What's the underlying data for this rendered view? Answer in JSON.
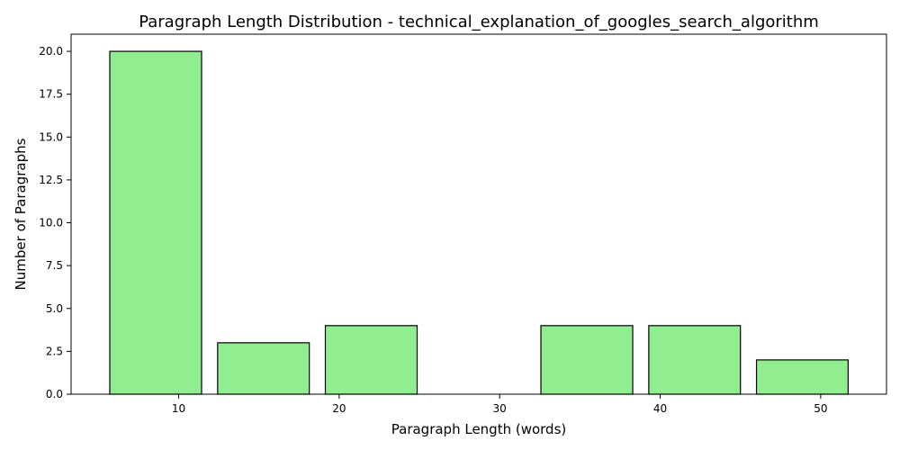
{
  "chart_data": {
    "type": "bar",
    "title": "Paragraph Length Distribution - technical_explanation_of_googles_search_algorithm",
    "xlabel": "Paragraph Length (words)",
    "ylabel": "Number of Paragraphs",
    "bins": [
      {
        "start": 5.71,
        "end": 11.43,
        "value": 20
      },
      {
        "start": 12.43,
        "end": 18.14,
        "value": 3
      },
      {
        "start": 19.14,
        "end": 24.86,
        "value": 4
      },
      {
        "start": 25.86,
        "end": 31.57,
        "value": 0
      },
      {
        "start": 32.57,
        "end": 38.29,
        "value": 4
      },
      {
        "start": 39.29,
        "end": 45.0,
        "value": 4
      },
      {
        "start": 46.0,
        "end": 51.71,
        "value": 2
      }
    ],
    "xlim": [
      3.3,
      54.1
    ],
    "ylim": [
      0,
      21
    ],
    "xticks": [
      10,
      20,
      30,
      40,
      50
    ],
    "yticks": [
      0,
      2.5,
      5,
      7.5,
      10,
      12.5,
      15,
      17.5,
      20
    ],
    "ytick_labels": [
      "0.0",
      "2.5",
      "5.0",
      "7.5",
      "10.0",
      "12.5",
      "15.0",
      "17.5",
      "20.0"
    ],
    "bar_color": "#90ee90",
    "edge_color": "#000000",
    "grid": false,
    "legend": "none"
  }
}
